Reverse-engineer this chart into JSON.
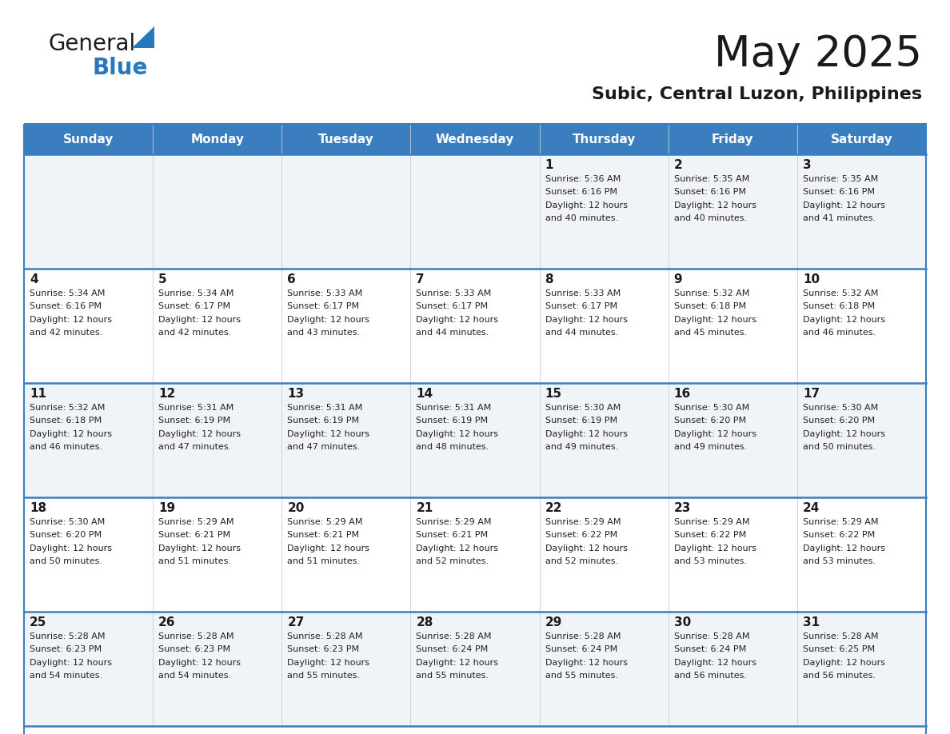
{
  "title": "May 2025",
  "subtitle": "Subic, Central Luzon, Philippines",
  "header_bg": "#3a7ebf",
  "header_text": "#ffffff",
  "row_bg_odd": "#f0f4f8",
  "row_bg_even": "#ffffff",
  "day_names": [
    "Sunday",
    "Monday",
    "Tuesday",
    "Wednesday",
    "Thursday",
    "Friday",
    "Saturday"
  ],
  "days": [
    {
      "day": 1,
      "col": 4,
      "row": 0,
      "sunrise": "5:36 AM",
      "sunset": "6:16 PM",
      "daylight": "12 hours and 40 minutes."
    },
    {
      "day": 2,
      "col": 5,
      "row": 0,
      "sunrise": "5:35 AM",
      "sunset": "6:16 PM",
      "daylight": "12 hours and 40 minutes."
    },
    {
      "day": 3,
      "col": 6,
      "row": 0,
      "sunrise": "5:35 AM",
      "sunset": "6:16 PM",
      "daylight": "12 hours and 41 minutes."
    },
    {
      "day": 4,
      "col": 0,
      "row": 1,
      "sunrise": "5:34 AM",
      "sunset": "6:16 PM",
      "daylight": "12 hours and 42 minutes."
    },
    {
      "day": 5,
      "col": 1,
      "row": 1,
      "sunrise": "5:34 AM",
      "sunset": "6:17 PM",
      "daylight": "12 hours and 42 minutes."
    },
    {
      "day": 6,
      "col": 2,
      "row": 1,
      "sunrise": "5:33 AM",
      "sunset": "6:17 PM",
      "daylight": "12 hours and 43 minutes."
    },
    {
      "day": 7,
      "col": 3,
      "row": 1,
      "sunrise": "5:33 AM",
      "sunset": "6:17 PM",
      "daylight": "12 hours and 44 minutes."
    },
    {
      "day": 8,
      "col": 4,
      "row": 1,
      "sunrise": "5:33 AM",
      "sunset": "6:17 PM",
      "daylight": "12 hours and 44 minutes."
    },
    {
      "day": 9,
      "col": 5,
      "row": 1,
      "sunrise": "5:32 AM",
      "sunset": "6:18 PM",
      "daylight": "12 hours and 45 minutes."
    },
    {
      "day": 10,
      "col": 6,
      "row": 1,
      "sunrise": "5:32 AM",
      "sunset": "6:18 PM",
      "daylight": "12 hours and 46 minutes."
    },
    {
      "day": 11,
      "col": 0,
      "row": 2,
      "sunrise": "5:32 AM",
      "sunset": "6:18 PM",
      "daylight": "12 hours and 46 minutes."
    },
    {
      "day": 12,
      "col": 1,
      "row": 2,
      "sunrise": "5:31 AM",
      "sunset": "6:19 PM",
      "daylight": "12 hours and 47 minutes."
    },
    {
      "day": 13,
      "col": 2,
      "row": 2,
      "sunrise": "5:31 AM",
      "sunset": "6:19 PM",
      "daylight": "12 hours and 47 minutes."
    },
    {
      "day": 14,
      "col": 3,
      "row": 2,
      "sunrise": "5:31 AM",
      "sunset": "6:19 PM",
      "daylight": "12 hours and 48 minutes."
    },
    {
      "day": 15,
      "col": 4,
      "row": 2,
      "sunrise": "5:30 AM",
      "sunset": "6:19 PM",
      "daylight": "12 hours and 49 minutes."
    },
    {
      "day": 16,
      "col": 5,
      "row": 2,
      "sunrise": "5:30 AM",
      "sunset": "6:20 PM",
      "daylight": "12 hours and 49 minutes."
    },
    {
      "day": 17,
      "col": 6,
      "row": 2,
      "sunrise": "5:30 AM",
      "sunset": "6:20 PM",
      "daylight": "12 hours and 50 minutes."
    },
    {
      "day": 18,
      "col": 0,
      "row": 3,
      "sunrise": "5:30 AM",
      "sunset": "6:20 PM",
      "daylight": "12 hours and 50 minutes."
    },
    {
      "day": 19,
      "col": 1,
      "row": 3,
      "sunrise": "5:29 AM",
      "sunset": "6:21 PM",
      "daylight": "12 hours and 51 minutes."
    },
    {
      "day": 20,
      "col": 2,
      "row": 3,
      "sunrise": "5:29 AM",
      "sunset": "6:21 PM",
      "daylight": "12 hours and 51 minutes."
    },
    {
      "day": 21,
      "col": 3,
      "row": 3,
      "sunrise": "5:29 AM",
      "sunset": "6:21 PM",
      "daylight": "12 hours and 52 minutes."
    },
    {
      "day": 22,
      "col": 4,
      "row": 3,
      "sunrise": "5:29 AM",
      "sunset": "6:22 PM",
      "daylight": "12 hours and 52 minutes."
    },
    {
      "day": 23,
      "col": 5,
      "row": 3,
      "sunrise": "5:29 AM",
      "sunset": "6:22 PM",
      "daylight": "12 hours and 53 minutes."
    },
    {
      "day": 24,
      "col": 6,
      "row": 3,
      "sunrise": "5:29 AM",
      "sunset": "6:22 PM",
      "daylight": "12 hours and 53 minutes."
    },
    {
      "day": 25,
      "col": 0,
      "row": 4,
      "sunrise": "5:28 AM",
      "sunset": "6:23 PM",
      "daylight": "12 hours and 54 minutes."
    },
    {
      "day": 26,
      "col": 1,
      "row": 4,
      "sunrise": "5:28 AM",
      "sunset": "6:23 PM",
      "daylight": "12 hours and 54 minutes."
    },
    {
      "day": 27,
      "col": 2,
      "row": 4,
      "sunrise": "5:28 AM",
      "sunset": "6:23 PM",
      "daylight": "12 hours and 55 minutes."
    },
    {
      "day": 28,
      "col": 3,
      "row": 4,
      "sunrise": "5:28 AM",
      "sunset": "6:24 PM",
      "daylight": "12 hours and 55 minutes."
    },
    {
      "day": 29,
      "col": 4,
      "row": 4,
      "sunrise": "5:28 AM",
      "sunset": "6:24 PM",
      "daylight": "12 hours and 55 minutes."
    },
    {
      "day": 30,
      "col": 5,
      "row": 4,
      "sunrise": "5:28 AM",
      "sunset": "6:24 PM",
      "daylight": "12 hours and 56 minutes."
    },
    {
      "day": 31,
      "col": 6,
      "row": 4,
      "sunrise": "5:28 AM",
      "sunset": "6:25 PM",
      "daylight": "12 hours and 56 minutes."
    }
  ],
  "n_rows": 5,
  "n_cols": 7,
  "logo_general_color": "#1a1a1a",
  "logo_blue_color": "#2878be",
  "border_color": "#3a7ebf",
  "title_fontsize": 38,
  "subtitle_fontsize": 16,
  "header_fontsize": 11,
  "day_num_fontsize": 11,
  "cell_text_fontsize": 8
}
